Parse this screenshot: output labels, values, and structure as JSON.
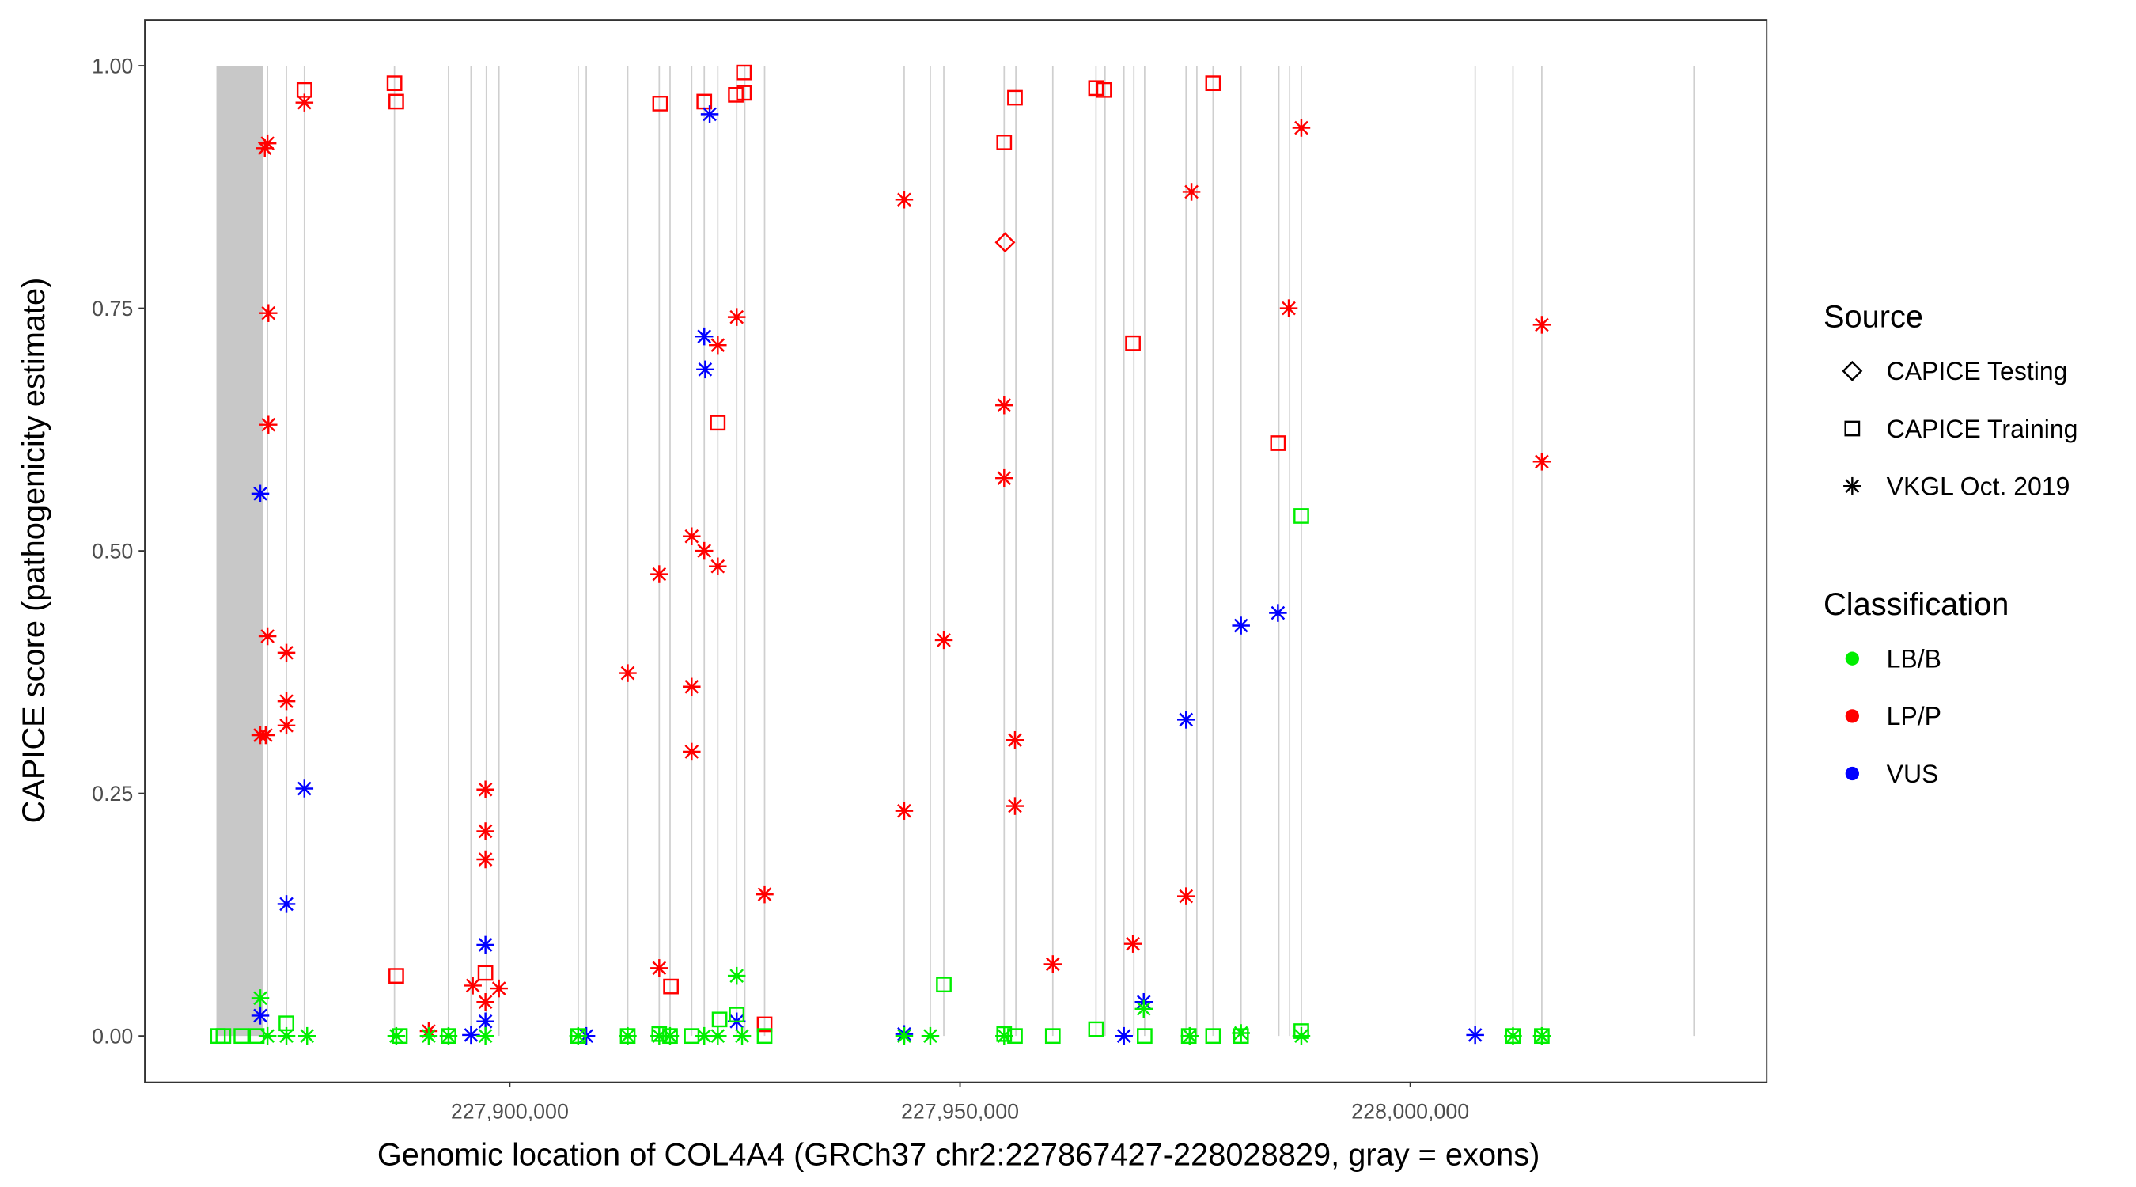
{
  "chart_data": {
    "type": "scatter",
    "title": "",
    "xlabel": "Genomic location of COL4A4 (GRCh37 chr2:227867427-228028829, gray = exons)",
    "ylabel": "CAPICE score (pathogenicity estimate)",
    "xlim": [
      227859400,
      228039500
    ],
    "ylim": [
      -0.047,
      1.048
    ],
    "xticks": [
      227900000,
      227950000,
      228000000
    ],
    "xtick_labels": [
      "227,900,000",
      "227,950,000",
      "228,000,000"
    ],
    "yticks": [
      0,
      0.25,
      0.5,
      0.75,
      1
    ],
    "ytick_labels": [
      "0.00",
      "0.25",
      "0.50",
      "0.75",
      "1.00"
    ],
    "grid": false,
    "exon_band": [
      227867427,
      227872600
    ],
    "exon_lines": [
      227873100,
      227875200,
      227877200,
      227887200,
      227893200,
      227895700,
      227897400,
      227898800,
      227907600,
      227908500,
      227913100,
      227916600,
      227917800,
      227920200,
      227921600,
      227923100,
      227925200,
      227926100,
      227928300,
      227943800,
      227946700,
      227948200,
      227954900,
      227956200,
      227960300,
      227965100,
      227966100,
      227968200,
      227969300,
      227970500,
      227975100,
      227976300,
      227978100,
      227981200,
      227985400,
      227986600,
      227987900,
      228007200,
      228011400,
      228014600,
      228031500
    ],
    "legend": {
      "position": "right",
      "source_title": "Source",
      "source_items": [
        "CAPICE Testing",
        "CAPICE Training",
        "VKGL Oct. 2019"
      ],
      "class_title": "Classification",
      "class_items": [
        "LB/B",
        "LP/P",
        "VUS"
      ]
    },
    "colors": {
      "LB/B": "#00ee00",
      "LP/P": "#ff0000",
      "VUS": "#0000ff"
    },
    "series": [
      {
        "name": "VKGL Oct. 2019 / LP/P",
        "source": "VKGL Oct. 2019",
        "class": "LP/P",
        "points": [
          [
            227872800,
            0.915
          ],
          [
            227873100,
            0.92
          ],
          [
            227873200,
            0.745
          ],
          [
            227873200,
            0.63
          ],
          [
            227873100,
            0.412
          ],
          [
            227872300,
            0.31
          ],
          [
            227872900,
            0.31
          ],
          [
            227875200,
            0.395
          ],
          [
            227875200,
            0.345
          ],
          [
            227875200,
            0.32
          ],
          [
            227877200,
            0.962
          ],
          [
            227897300,
            0.254
          ],
          [
            227897300,
            0.211
          ],
          [
            227897300,
            0.182
          ],
          [
            227895900,
            0.052
          ],
          [
            227897300,
            0.035
          ],
          [
            227898800,
            0.049
          ],
          [
            227891000,
            0.005
          ],
          [
            227913100,
            0.374
          ],
          [
            227916600,
            0.476
          ],
          [
            227916600,
            0.07
          ],
          [
            227920200,
            0.515
          ],
          [
            227921600,
            0.5
          ],
          [
            227923100,
            0.484
          ],
          [
            227920200,
            0.36
          ],
          [
            227920200,
            0.293
          ],
          [
            227923100,
            0.712
          ],
          [
            227925200,
            0.741
          ],
          [
            227928300,
            0.146
          ],
          [
            227943800,
            0.862
          ],
          [
            227948200,
            0.408
          ],
          [
            227943800,
            0.232
          ],
          [
            227954900,
            0.65
          ],
          [
            227954900,
            0.575
          ],
          [
            227956100,
            0.305
          ],
          [
            227956100,
            0.237
          ],
          [
            227960300,
            0.074
          ],
          [
            227969200,
            0.095
          ],
          [
            227975700,
            0.87
          ],
          [
            227975100,
            0.144
          ],
          [
            227986500,
            0.75
          ],
          [
            227987900,
            0.936
          ],
          [
            228014600,
            0.733
          ],
          [
            228014600,
            0.592
          ]
        ]
      },
      {
        "name": "CAPICE Training / LP/P",
        "source": "CAPICE Training",
        "class": "LP/P",
        "points": [
          [
            227877200,
            0.975
          ],
          [
            227887200,
            0.982
          ],
          [
            227887400,
            0.963
          ],
          [
            227887400,
            0.062
          ],
          [
            227897300,
            0.065
          ],
          [
            227916700,
            0.961
          ],
          [
            227921600,
            0.963
          ],
          [
            227925100,
            0.97
          ],
          [
            227926000,
            0.972
          ],
          [
            227926000,
            0.993
          ],
          [
            227917900,
            0.051
          ],
          [
            227923100,
            0.632
          ],
          [
            227928300,
            0.012
          ],
          [
            227954900,
            0.921
          ],
          [
            227956100,
            0.967
          ],
          [
            227965100,
            0.977
          ],
          [
            227966000,
            0.975
          ],
          [
            227969200,
            0.714
          ],
          [
            227978100,
            0.982
          ],
          [
            227985300,
            0.611
          ]
        ]
      },
      {
        "name": "CAPICE Testing / LP/P",
        "source": "CAPICE Testing",
        "class": "LP/P",
        "points": [
          [
            227955000,
            0.818
          ]
        ]
      },
      {
        "name": "VKGL Oct. 2019 / VUS",
        "source": "VKGL Oct. 2019",
        "class": "VUS",
        "points": [
          [
            227872300,
            0.559
          ],
          [
            227877200,
            0.255
          ],
          [
            227875200,
            0.136
          ],
          [
            227872300,
            0.021
          ],
          [
            227897300,
            0.094
          ],
          [
            227897300,
            0.015
          ],
          [
            227895700,
            0.001
          ],
          [
            227908500,
            0.0
          ],
          [
            227922200,
            0.95
          ],
          [
            227921600,
            0.721
          ],
          [
            227921700,
            0.687
          ],
          [
            227925200,
            0.015
          ],
          [
            227943800,
            0.002
          ],
          [
            227975100,
            0.326
          ],
          [
            227981200,
            0.423
          ],
          [
            227985300,
            0.436
          ],
          [
            227970400,
            0.035
          ],
          [
            227968200,
            0.0
          ],
          [
            228007200,
            0.001
          ]
        ]
      },
      {
        "name": "VKGL Oct. 2019 / LB/B",
        "source": "VKGL Oct. 2019",
        "class": "LB/B",
        "points": [
          [
            227872300,
            0.039
          ],
          [
            227873100,
            0.0
          ],
          [
            227875200,
            0.0
          ],
          [
            227877500,
            0.0
          ],
          [
            227887400,
            0.0
          ],
          [
            227891000,
            0.0
          ],
          [
            227893200,
            0.0
          ],
          [
            227897300,
            0.0
          ],
          [
            227907600,
            0.0
          ],
          [
            227913100,
            0.0
          ],
          [
            227916600,
            0.0
          ],
          [
            227917800,
            0.0
          ],
          [
            227921600,
            0.0
          ],
          [
            227923100,
            0.0
          ],
          [
            227925200,
            0.062
          ],
          [
            227925800,
            0.0
          ],
          [
            227943800,
            0.0
          ],
          [
            227946700,
            0.0
          ],
          [
            227954900,
            0.0
          ],
          [
            227970400,
            0.028
          ],
          [
            227975500,
            0.0
          ],
          [
            227981200,
            0.003
          ],
          [
            227987900,
            0.0
          ],
          [
            228011400,
            0.0
          ],
          [
            228014600,
            0.0
          ]
        ]
      },
      {
        "name": "CAPICE Training / LB/B",
        "source": "CAPICE Training",
        "class": "LB/B",
        "points": [
          [
            227867600,
            0.0
          ],
          [
            227868200,
            0.0
          ],
          [
            227870200,
            0.0
          ],
          [
            227871900,
            0.0
          ],
          [
            227875200,
            0.013
          ],
          [
            227887800,
            0.0
          ],
          [
            227893200,
            0.0
          ],
          [
            227907600,
            0.0
          ],
          [
            227913100,
            0.0
          ],
          [
            227916600,
            0.002
          ],
          [
            227917800,
            0.0
          ],
          [
            227920200,
            0.0
          ],
          [
            227923300,
            0.017
          ],
          [
            227925200,
            0.022
          ],
          [
            227928300,
            0.0
          ],
          [
            227948200,
            0.053
          ],
          [
            227954900,
            0.002
          ],
          [
            227956100,
            0.0
          ],
          [
            227960300,
            0.0
          ],
          [
            227965100,
            0.007
          ],
          [
            227970500,
            0.0
          ],
          [
            227975400,
            0.0
          ],
          [
            227978100,
            0.0
          ],
          [
            227981200,
            0.0
          ],
          [
            227987900,
            0.536
          ],
          [
            227987900,
            0.005
          ],
          [
            228011400,
            0.0
          ],
          [
            228014600,
            0.0
          ]
        ]
      }
    ]
  }
}
